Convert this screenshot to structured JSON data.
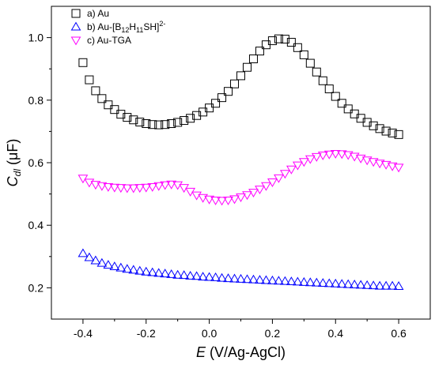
{
  "chart_data": {
    "type": "scatter",
    "xlabel": {
      "italic": "E",
      "rest": " (V/Ag-AgCl)"
    },
    "ylabel": {
      "main": "C",
      "sub": "dl",
      "rest": " (μF)"
    },
    "xlim": [
      -0.5,
      0.7
    ],
    "ylim": [
      0.1,
      1.1
    ],
    "xticks": [
      -0.4,
      -0.2,
      0.0,
      0.2,
      0.4,
      0.6
    ],
    "xtick_labels": [
      "-0.4",
      "-0.2",
      "0.0",
      "0.2",
      "0.4",
      "0.6"
    ],
    "yticks": [
      0.2,
      0.4,
      0.6,
      0.8,
      1.0
    ],
    "ytick_labels": [
      "0.2",
      "0.4",
      "0.6",
      "0.8",
      "1.0"
    ],
    "grid": false,
    "legend_position": "top-left",
    "series": [
      {
        "name": "a) Au",
        "legend_label": {
          "text": "a) Au"
        },
        "marker": "square-open",
        "color": "#000000",
        "x": [
          -0.4,
          -0.38,
          -0.36,
          -0.34,
          -0.32,
          -0.3,
          -0.28,
          -0.26,
          -0.24,
          -0.22,
          -0.2,
          -0.18,
          -0.16,
          -0.14,
          -0.12,
          -0.1,
          -0.08,
          -0.06,
          -0.04,
          -0.02,
          0.0,
          0.02,
          0.04,
          0.06,
          0.08,
          0.1,
          0.12,
          0.14,
          0.16,
          0.18,
          0.2,
          0.22,
          0.24,
          0.26,
          0.28,
          0.3,
          0.32,
          0.34,
          0.36,
          0.38,
          0.4,
          0.42,
          0.44,
          0.46,
          0.48,
          0.5,
          0.52,
          0.54,
          0.56,
          0.58,
          0.6
        ],
        "y": [
          0.92,
          0.865,
          0.83,
          0.805,
          0.785,
          0.77,
          0.755,
          0.745,
          0.737,
          0.73,
          0.725,
          0.722,
          0.721,
          0.722,
          0.725,
          0.729,
          0.735,
          0.742,
          0.751,
          0.762,
          0.775,
          0.79,
          0.808,
          0.828,
          0.852,
          0.878,
          0.905,
          0.932,
          0.957,
          0.977,
          0.99,
          0.996,
          0.995,
          0.985,
          0.968,
          0.945,
          0.918,
          0.89,
          0.862,
          0.836,
          0.812,
          0.79,
          0.772,
          0.756,
          0.742,
          0.729,
          0.718,
          0.709,
          0.701,
          0.695,
          0.69
        ]
      },
      {
        "name": "b) Au-[B12H11SH]2-",
        "legend_label": {
          "pre": "b) Au-[B",
          "s1": "12",
          "mid": "H",
          "s2": "11",
          "post": "SH]",
          "sup": "2-"
        },
        "marker": "triangle-up-open",
        "color": "#0000ff",
        "x": [
          -0.4,
          -0.38,
          -0.36,
          -0.34,
          -0.32,
          -0.3,
          -0.28,
          -0.26,
          -0.24,
          -0.22,
          -0.2,
          -0.18,
          -0.16,
          -0.14,
          -0.12,
          -0.1,
          -0.08,
          -0.06,
          -0.04,
          -0.02,
          0.0,
          0.02,
          0.04,
          0.06,
          0.08,
          0.1,
          0.12,
          0.14,
          0.16,
          0.18,
          0.2,
          0.22,
          0.24,
          0.26,
          0.28,
          0.3,
          0.32,
          0.34,
          0.36,
          0.38,
          0.4,
          0.42,
          0.44,
          0.46,
          0.48,
          0.5,
          0.52,
          0.54,
          0.56,
          0.58,
          0.6
        ],
        "y": [
          0.31,
          0.297,
          0.287,
          0.279,
          0.273,
          0.268,
          0.264,
          0.26,
          0.257,
          0.254,
          0.251,
          0.249,
          0.247,
          0.245,
          0.243,
          0.241,
          0.24,
          0.238,
          0.237,
          0.235,
          0.234,
          0.233,
          0.231,
          0.23,
          0.229,
          0.228,
          0.227,
          0.226,
          0.225,
          0.224,
          0.223,
          0.222,
          0.221,
          0.22,
          0.219,
          0.218,
          0.217,
          0.216,
          0.215,
          0.214,
          0.213,
          0.212,
          0.211,
          0.21,
          0.209,
          0.208,
          0.207,
          0.206,
          0.206,
          0.206,
          0.205
        ]
      },
      {
        "name": "c) Au-TGA",
        "legend_label": {
          "text": "c) Au-TGA"
        },
        "marker": "triangle-down-open",
        "color": "#ff00ff",
        "x": [
          -0.4,
          -0.38,
          -0.36,
          -0.34,
          -0.32,
          -0.3,
          -0.28,
          -0.26,
          -0.24,
          -0.22,
          -0.2,
          -0.18,
          -0.16,
          -0.14,
          -0.12,
          -0.1,
          -0.08,
          -0.06,
          -0.04,
          -0.02,
          0.0,
          0.02,
          0.04,
          0.06,
          0.08,
          0.1,
          0.12,
          0.14,
          0.16,
          0.18,
          0.2,
          0.22,
          0.24,
          0.26,
          0.28,
          0.3,
          0.32,
          0.34,
          0.36,
          0.38,
          0.4,
          0.42,
          0.44,
          0.46,
          0.48,
          0.5,
          0.52,
          0.54,
          0.56,
          0.58,
          0.6
        ],
        "y": [
          0.55,
          0.537,
          0.53,
          0.526,
          0.523,
          0.521,
          0.52,
          0.519,
          0.519,
          0.52,
          0.521,
          0.523,
          0.526,
          0.529,
          0.531,
          0.529,
          0.52,
          0.508,
          0.496,
          0.488,
          0.483,
          0.48,
          0.479,
          0.48,
          0.484,
          0.49,
          0.497,
          0.505,
          0.515,
          0.526,
          0.538,
          0.551,
          0.565,
          0.579,
          0.592,
          0.603,
          0.612,
          0.619,
          0.624,
          0.627,
          0.629,
          0.628,
          0.625,
          0.62,
          0.614,
          0.608,
          0.603,
          0.598,
          0.594,
          0.589,
          0.585
        ]
      }
    ]
  }
}
